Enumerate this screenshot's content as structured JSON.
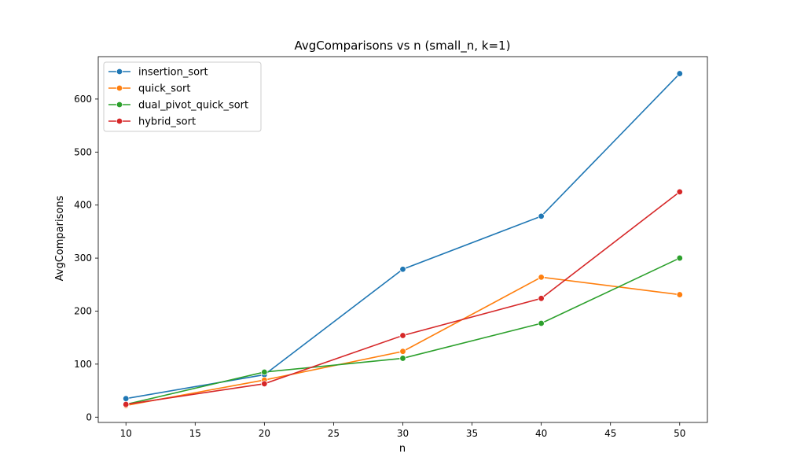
{
  "chart_data": {
    "type": "line",
    "title": "AvgComparisons vs n (small_n, k=1)",
    "xlabel": "n",
    "ylabel": "AvgComparisons",
    "x": [
      10,
      20,
      30,
      40,
      50
    ],
    "xlim": [
      8,
      52
    ],
    "ylim": [
      -10,
      680
    ],
    "xticks": [
      10,
      15,
      20,
      25,
      30,
      35,
      40,
      45,
      50
    ],
    "yticks": [
      0,
      100,
      200,
      300,
      400,
      500,
      600
    ],
    "grid": false,
    "legend_position": "upper-left",
    "series": [
      {
        "name": "insertion_sort",
        "color": "#1f77b4",
        "values": [
          35,
          80,
          279,
          379,
          648
        ]
      },
      {
        "name": "quick_sort",
        "color": "#ff7f0e",
        "values": [
          22,
          70,
          124,
          264,
          231
        ]
      },
      {
        "name": "dual_pivot_quick_sort",
        "color": "#2ca02c",
        "values": [
          24,
          85,
          111,
          177,
          300
        ]
      },
      {
        "name": "hybrid_sort",
        "color": "#d62728",
        "values": [
          24,
          63,
          154,
          224,
          425
        ]
      }
    ]
  }
}
